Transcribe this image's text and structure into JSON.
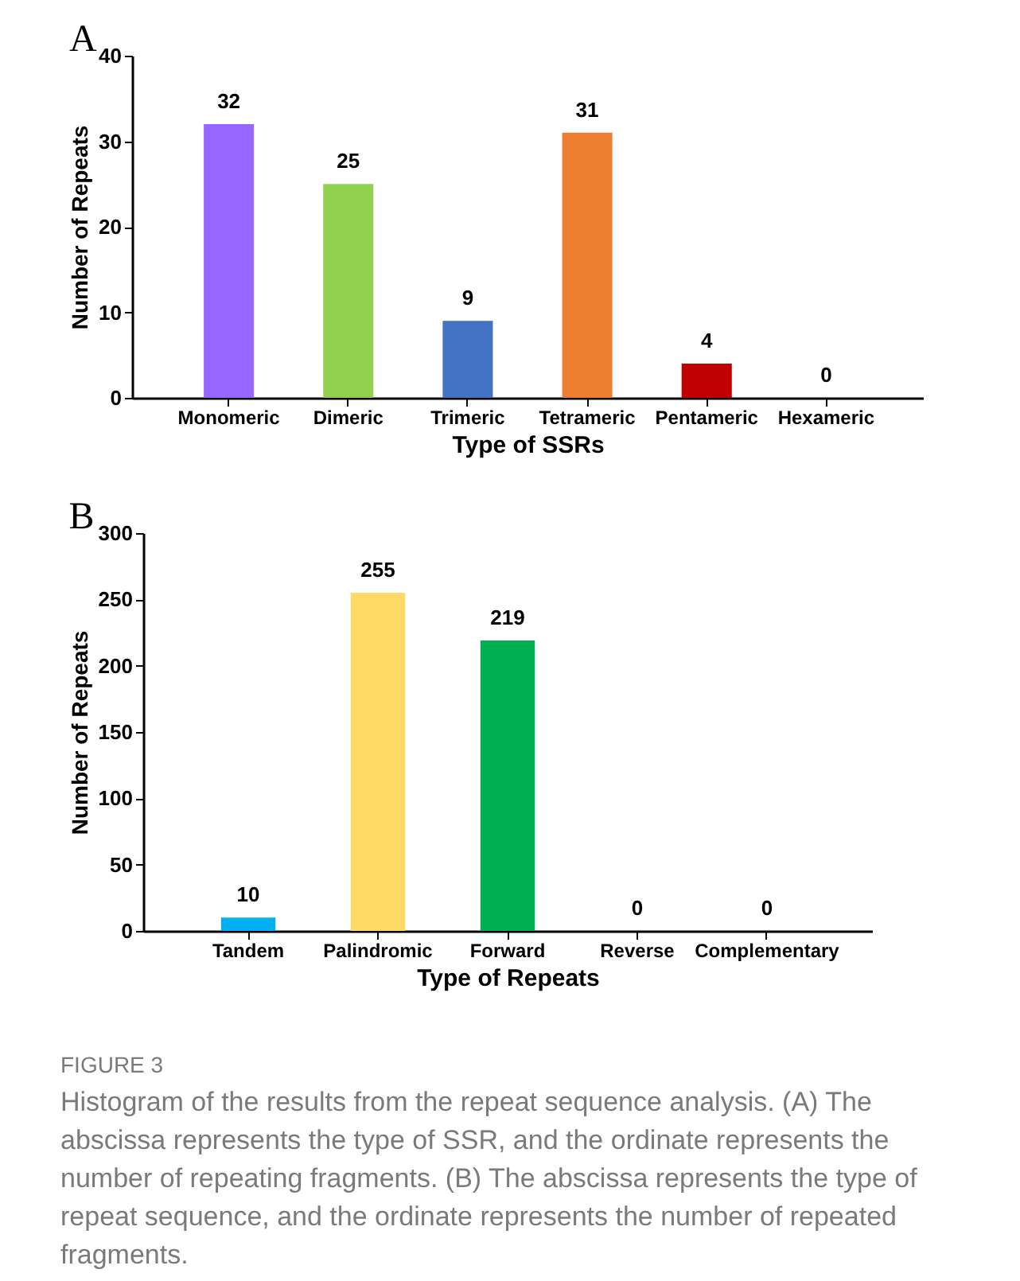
{
  "chart_data": [
    {
      "type": "bar",
      "title": "A",
      "xlabel": "Type of SSRs",
      "ylabel": "Number of Repeats",
      "categories": [
        "Monomeric",
        "Dimeric",
        "Trimeric",
        "Tetrameric",
        "Pentameric",
        "Hexameric"
      ],
      "values": [
        32,
        25,
        9,
        31,
        4,
        0
      ],
      "colors": [
        "#9966ff",
        "#92d050",
        "#4472c4",
        "#ed7d31",
        "#c00000",
        "#7f7f7f"
      ],
      "ylim": [
        0,
        40
      ],
      "yticks": [
        0,
        10,
        20,
        30,
        40
      ],
      "data_labels": true
    },
    {
      "type": "bar",
      "title": "B",
      "xlabel": "Type of Repeats",
      "ylabel": "Number of Repeats",
      "categories": [
        "Tandem",
        "Palindromic",
        "Forward",
        "Reverse",
        "Complementary"
      ],
      "values": [
        10,
        255,
        219,
        0,
        0
      ],
      "colors": [
        "#00b0f0",
        "#ffd966",
        "#00b050",
        "#7f7f7f",
        "#7f7f7f"
      ],
      "ylim": [
        0,
        300
      ],
      "yticks": [
        0,
        50,
        100,
        150,
        200,
        250,
        300
      ],
      "data_labels": true,
      "annotations": [
        "FIGURE 3",
        "Histogram of the results from the repeat sequence analysis. (A) The abscissa represents the type of SSR, and the ordinate represents the number of repeating fragments. (B) The abscissa represents the type of repeat sequence, and the ordinate represents the number of repeated fragments."
      ]
    }
  ]
}
